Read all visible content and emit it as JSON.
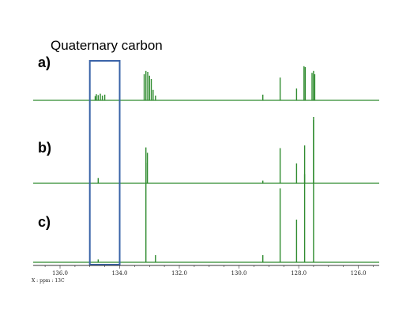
{
  "chart_data": {
    "type": "line",
    "title": "",
    "annotation": "Quaternary carbon",
    "xlabel": "X : ppm : 13C",
    "ylabel": "",
    "x_reversed": true,
    "xlim": [
      136.9,
      125.3
    ],
    "ticks": [
      "136.0",
      "134.0",
      "132.0",
      "130.0",
      "128.0",
      "126.0"
    ],
    "tick_values": [
      136.0,
      134.0,
      132.0,
      130.0,
      128.0,
      126.0
    ],
    "line_color": "#2e8b2e",
    "highlight": {
      "x_range": [
        135.0,
        134.0
      ],
      "color": "#3a63a8"
    },
    "panels": [
      {
        "label": "a)",
        "peaks": [
          {
            "ppm": 134.82,
            "height": 0.09
          },
          {
            "ppm": 134.78,
            "height": 0.13
          },
          {
            "ppm": 134.72,
            "height": 0.11
          },
          {
            "ppm": 134.65,
            "height": 0.14
          },
          {
            "ppm": 134.58,
            "height": 0.1
          },
          {
            "ppm": 134.5,
            "height": 0.12
          },
          {
            "ppm": 133.18,
            "height": 0.55
          },
          {
            "ppm": 133.12,
            "height": 0.62
          },
          {
            "ppm": 133.06,
            "height": 0.6
          },
          {
            "ppm": 133.0,
            "height": 0.52
          },
          {
            "ppm": 132.94,
            "height": 0.45
          },
          {
            "ppm": 132.88,
            "height": 0.22
          },
          {
            "ppm": 132.8,
            "height": 0.1
          },
          {
            "ppm": 129.2,
            "height": 0.12
          },
          {
            "ppm": 128.62,
            "height": 0.48
          },
          {
            "ppm": 128.07,
            "height": 0.25
          },
          {
            "ppm": 127.82,
            "height": 0.72
          },
          {
            "ppm": 127.78,
            "height": 0.7
          },
          {
            "ppm": 127.55,
            "height": 0.58
          },
          {
            "ppm": 127.5,
            "height": 0.62
          },
          {
            "ppm": 127.46,
            "height": 0.55
          }
        ]
      },
      {
        "label": "b)",
        "peaks": [
          {
            "ppm": 134.72,
            "height": 0.08
          },
          {
            "ppm": 133.12,
            "height": 0.54
          },
          {
            "ppm": 133.07,
            "height": 0.46
          },
          {
            "ppm": 129.2,
            "height": 0.04
          },
          {
            "ppm": 128.62,
            "height": 0.53
          },
          {
            "ppm": 128.07,
            "height": 0.3
          },
          {
            "ppm": 127.8,
            "height": 0.57
          },
          {
            "ppm": 127.5,
            "height": 1.0
          }
        ]
      },
      {
        "label": "c)",
        "peaks": [
          {
            "ppm": 134.72,
            "height": 0.02
          },
          {
            "ppm": 133.12,
            "height": 0.7
          },
          {
            "ppm": 132.8,
            "height": 0.05
          },
          {
            "ppm": 129.2,
            "height": 0.05
          },
          {
            "ppm": 128.62,
            "height": 0.52
          },
          {
            "ppm": 128.07,
            "height": 0.3
          },
          {
            "ppm": 127.8,
            "height": 0.62
          },
          {
            "ppm": 127.5,
            "height": 1.0
          }
        ]
      }
    ]
  }
}
